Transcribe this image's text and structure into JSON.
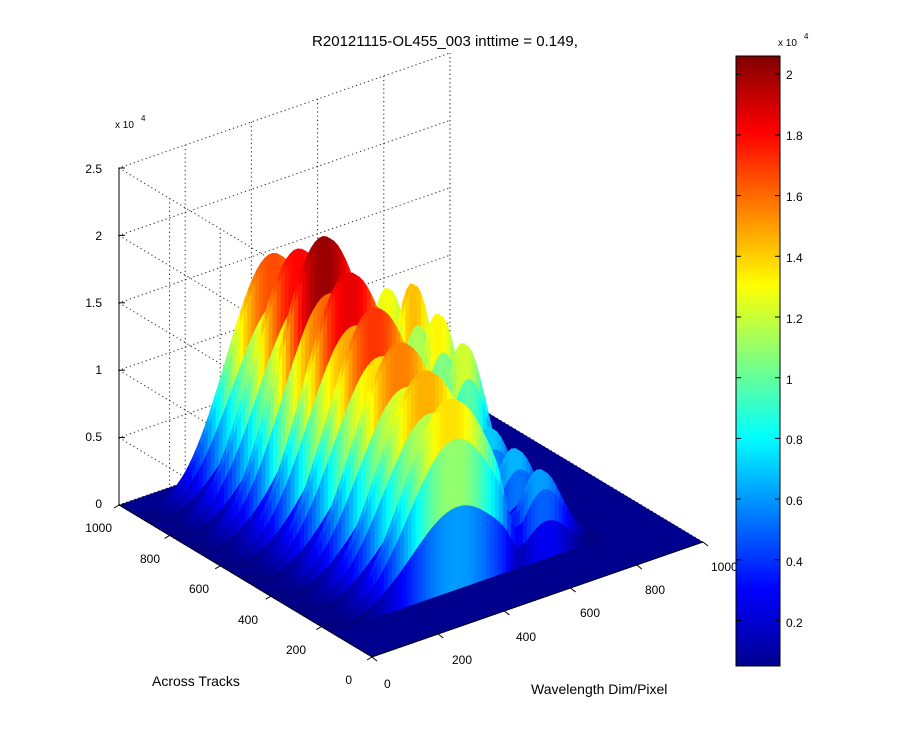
{
  "chart_data": {
    "type": "surface3d",
    "title": "R20121115-OL455_003 inttime = 0.149,",
    "xlabel": "Wavelength Dim/Pixel",
    "ylabel": "Across Tracks",
    "zlabel": "",
    "x_ticks": [
      "0",
      "200",
      "400",
      "600",
      "800",
      "1000"
    ],
    "y_ticks": [
      "0",
      "200",
      "400",
      "600",
      "800",
      "1000"
    ],
    "z_ticks": [
      "0",
      "0.5",
      "1",
      "1.5",
      "2",
      "2.5"
    ],
    "z_multiplier": {
      "base": "x 10",
      "exponent": "4"
    },
    "xlim": [
      0,
      1000
    ],
    "ylim": [
      0,
      1000
    ],
    "zlim": [
      0,
      25000
    ],
    "grid": true,
    "colormap": "jet",
    "colorbar": {
      "ticks": [
        "0.2",
        "0.4",
        "0.6",
        "0.8",
        "1",
        "1.2",
        "1.4",
        "1.6",
        "1.8",
        "2"
      ],
      "range": [
        500,
        20600
      ],
      "multiplier": {
        "base": "x 10",
        "exponent": "4"
      }
    },
    "band_centers_across_track": [
      190,
      290,
      390,
      490,
      590,
      690,
      790,
      890
    ],
    "peak_value_approx": 20600
  },
  "colors": {
    "background": "#ffffff",
    "floor": "#00008f",
    "jet_low": "#00008f",
    "jet_high": "#800000"
  }
}
